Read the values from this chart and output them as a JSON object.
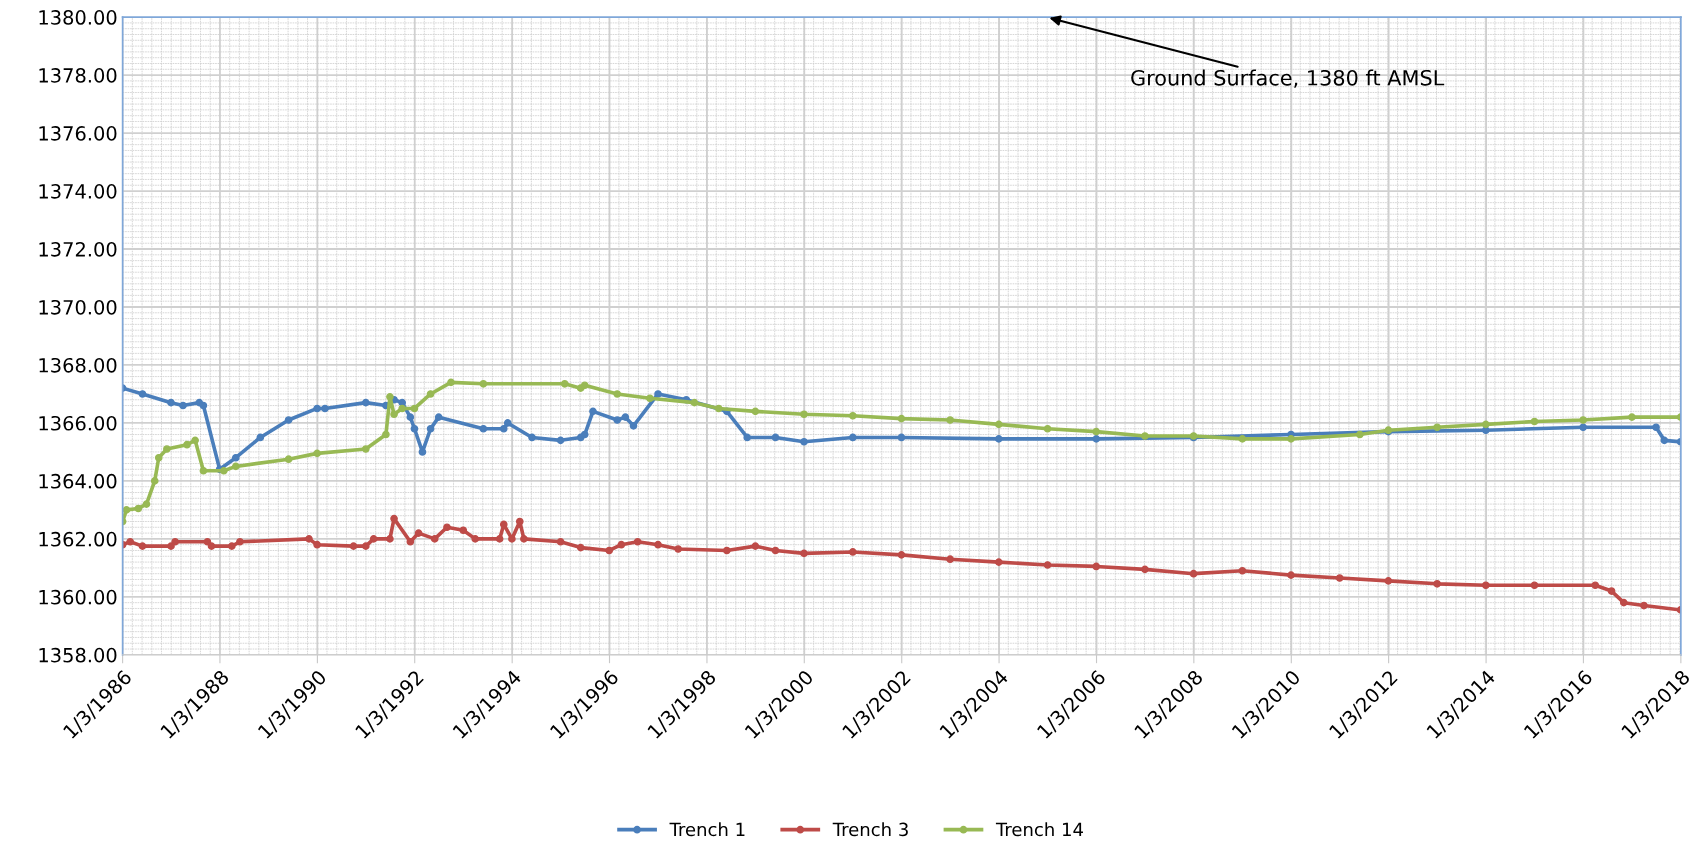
{
  "chart_data": {
    "type": "line",
    "marker": "circle",
    "line_style": "solid",
    "grid": true,
    "legend": "bottom",
    "xlim": [
      "1986-01-03",
      "2018-01-03"
    ],
    "ylim": [
      1358,
      1380
    ],
    "yticks": [
      {
        "value": 1358,
        "label": "1358.00"
      },
      {
        "value": 1360,
        "label": "1360.00"
      },
      {
        "value": 1362,
        "label": "1362.00"
      },
      {
        "value": 1364,
        "label": "1364.00"
      },
      {
        "value": 1366,
        "label": "1366.00"
      },
      {
        "value": 1368,
        "label": "1368.00"
      },
      {
        "value": 1370,
        "label": "1370.00"
      },
      {
        "value": 1372,
        "label": "1372.00"
      },
      {
        "value": 1374,
        "label": "1374.00"
      },
      {
        "value": 1376,
        "label": "1376.00"
      },
      {
        "value": 1378,
        "label": "1378.00"
      },
      {
        "value": 1380,
        "label": "1380.00"
      }
    ],
    "xticks": [
      {
        "value": "1986-01-03",
        "label": "1/3/1986"
      },
      {
        "value": "1988-01-03",
        "label": "1/3/1988"
      },
      {
        "value": "1990-01-03",
        "label": "1/3/1990"
      },
      {
        "value": "1992-01-03",
        "label": "1/3/1992"
      },
      {
        "value": "1994-01-03",
        "label": "1/3/1994"
      },
      {
        "value": "1996-01-03",
        "label": "1/3/1996"
      },
      {
        "value": "1998-01-03",
        "label": "1/3/1998"
      },
      {
        "value": "2000-01-03",
        "label": "1/3/2000"
      },
      {
        "value": "2002-01-03",
        "label": "1/3/2002"
      },
      {
        "value": "2004-01-03",
        "label": "1/3/2004"
      },
      {
        "value": "2006-01-03",
        "label": "1/3/2006"
      },
      {
        "value": "2008-01-03",
        "label": "1/3/2008"
      },
      {
        "value": "2010-01-03",
        "label": "1/3/2010"
      },
      {
        "value": "2012-01-03",
        "label": "1/3/2012"
      },
      {
        "value": "2014-01-03",
        "label": "1/3/2014"
      },
      {
        "value": "2016-01-03",
        "label": "1/3/2016"
      },
      {
        "value": "2018-01-03",
        "label": "1/3/2018"
      }
    ],
    "annotations": [
      "Ground Surface, 1380 ft AMSL"
    ],
    "series": [
      {
        "name": "Trench 1",
        "color": "#4a7ebb",
        "x": [
          "1986-01-03",
          "1986-06",
          "1987-01",
          "1987-04",
          "1987-08",
          "1987-09",
          "1988-01",
          "1988-05",
          "1988-11",
          "1989-06",
          "1990-01",
          "1990-03",
          "1991-01",
          "1991-06",
          "1991-08",
          "1991-10",
          "1991-12",
          "1992-01",
          "1992-03",
          "1992-05",
          "1992-07",
          "1993-06",
          "1993-11",
          "1993-12",
          "1994-06",
          "1995-01",
          "1995-06",
          "1995-07",
          "1995-09",
          "1996-03",
          "1996-05",
          "1996-07",
          "1997-01",
          "1997-08",
          "1998-06",
          "1998-11",
          "1999-06",
          "2000-01",
          "2001-01",
          "2002-01",
          "2004-01",
          "2006-01",
          "2008-01",
          "2010-01",
          "2012-01",
          "2014-01",
          "2016-01",
          "2017-07",
          "2017-09",
          "2018-01"
        ],
        "values": [
          1367.2,
          1367.0,
          1366.7,
          1366.6,
          1366.7,
          1366.6,
          1364.4,
          1364.8,
          1365.5,
          1366.1,
          1366.5,
          1366.5,
          1366.7,
          1366.6,
          1366.8,
          1366.7,
          1366.2,
          1365.8,
          1365.0,
          1365.8,
          1366.2,
          1365.8,
          1365.8,
          1366.0,
          1365.5,
          1365.4,
          1365.5,
          1365.6,
          1366.4,
          1366.1,
          1366.2,
          1365.9,
          1367.0,
          1366.8,
          1366.4,
          1365.5,
          1365.5,
          1365.35,
          1365.5,
          1365.5,
          1365.45,
          1365.45,
          1365.5,
          1365.6,
          1365.7,
          1365.75,
          1365.85,
          1365.85,
          1365.4,
          1365.35
        ]
      },
      {
        "name": "Trench 3",
        "color": "#be4b48",
        "x": [
          "1986-01-03",
          "1986-03",
          "1986-06",
          "1987-01",
          "1987-02",
          "1987-10",
          "1987-11",
          "1988-04",
          "1988-06",
          "1989-11",
          "1990-01",
          "1990-10",
          "1991-01",
          "1991-03",
          "1991-07",
          "1991-08",
          "1991-12",
          "1992-02",
          "1992-06",
          "1992-09",
          "1993-01",
          "1993-04",
          "1993-10",
          "1993-11",
          "1994-01",
          "1994-03",
          "1994-04",
          "1995-01",
          "1995-06",
          "1996-01",
          "1996-04",
          "1996-08",
          "1997-01",
          "1997-06",
          "1998-06",
          "1999-01",
          "1999-06",
          "2000-01",
          "2001-01",
          "2002-01",
          "2003-01",
          "2004-01",
          "2005-01",
          "2006-01",
          "2007-01",
          "2008-01",
          "2009-01",
          "2010-01",
          "2011-01",
          "2012-01",
          "2013-01",
          "2014-01",
          "2015-01",
          "2016-04",
          "2016-08",
          "2016-11",
          "2017-04",
          "2018-01"
        ],
        "values": [
          1361.8,
          1361.9,
          1361.75,
          1361.75,
          1361.9,
          1361.9,
          1361.75,
          1361.75,
          1361.9,
          1362.0,
          1361.8,
          1361.75,
          1361.75,
          1362.0,
          1362.0,
          1362.7,
          1361.9,
          1362.2,
          1362.0,
          1362.4,
          1362.3,
          1362.0,
          1362.0,
          1362.5,
          1362.0,
          1362.6,
          1362.0,
          1361.9,
          1361.7,
          1361.6,
          1361.8,
          1361.9,
          1361.8,
          1361.65,
          1361.6,
          1361.75,
          1361.6,
          1361.5,
          1361.55,
          1361.45,
          1361.3,
          1361.2,
          1361.1,
          1361.05,
          1360.95,
          1360.8,
          1360.9,
          1360.75,
          1360.65,
          1360.55,
          1360.45,
          1360.4,
          1360.4,
          1360.4,
          1360.2,
          1359.8,
          1359.7,
          1359.55
        ]
      },
      {
        "name": "Trench 14",
        "color": "#98b954",
        "x": [
          "1986-01-03",
          "1986-02",
          "1986-05",
          "1986-07",
          "1986-09",
          "1986-10",
          "1986-12",
          "1987-05",
          "1987-07",
          "1987-09",
          "1988-02",
          "1988-05",
          "1989-06",
          "1990-01",
          "1991-01",
          "1991-06",
          "1991-07",
          "1991-08",
          "1991-10",
          "1992-01",
          "1992-05",
          "1992-10",
          "1993-06",
          "1995-02",
          "1995-06",
          "1995-07",
          "1996-03",
          "1996-11",
          "1997-10",
          "1998-04",
          "1999-01",
          "2000-01",
          "2001-01",
          "2002-01",
          "2003-01",
          "2004-01",
          "2005-01",
          "2006-01",
          "2007-01",
          "2008-01",
          "2009-01",
          "2010-01",
          "2011-06",
          "2012-01",
          "2013-01",
          "2014-01",
          "2015-01",
          "2016-01",
          "2017-01",
          "2018-01"
        ],
        "values": [
          1362.6,
          1363.0,
          1363.05,
          1363.2,
          1364.0,
          1364.8,
          1365.1,
          1365.25,
          1365.4,
          1364.35,
          1364.35,
          1364.5,
          1364.75,
          1364.95,
          1365.1,
          1365.6,
          1366.9,
          1366.3,
          1366.5,
          1366.5,
          1367.0,
          1367.4,
          1367.35,
          1367.35,
          1367.2,
          1367.3,
          1367.0,
          1366.85,
          1366.7,
          1366.5,
          1366.4,
          1366.3,
          1366.25,
          1366.15,
          1366.1,
          1365.95,
          1365.8,
          1365.7,
          1365.55,
          1365.55,
          1365.45,
          1365.45,
          1365.6,
          1365.75,
          1365.85,
          1365.95,
          1366.05,
          1366.1,
          1366.2,
          1366.2
        ]
      }
    ]
  }
}
